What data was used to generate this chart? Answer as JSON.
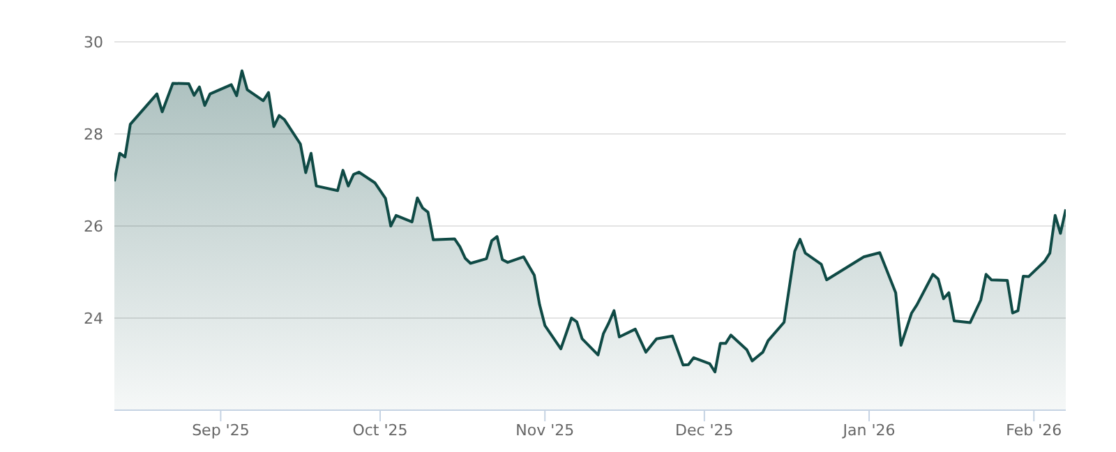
{
  "chart_data": {
    "type": "area",
    "x": [
      "2025-08-12",
      "2025-08-13",
      "2025-08-14",
      "2025-08-15",
      "2025-08-20",
      "2025-08-21",
      "2025-08-23",
      "2025-08-26",
      "2025-08-27",
      "2025-08-28",
      "2025-08-29",
      "2025-08-30",
      "2025-09-03",
      "2025-09-04",
      "2025-09-05",
      "2025-09-06",
      "2025-09-09",
      "2025-09-10",
      "2025-09-11",
      "2025-09-12",
      "2025-09-13",
      "2025-09-16",
      "2025-09-17",
      "2025-09-18",
      "2025-09-19",
      "2025-09-23",
      "2025-09-24",
      "2025-09-25",
      "2025-09-26",
      "2025-09-27",
      "2025-09-30",
      "2025-10-02",
      "2025-10-03",
      "2025-10-04",
      "2025-10-07",
      "2025-10-08",
      "2025-10-09",
      "2025-10-10",
      "2025-10-11",
      "2025-10-15",
      "2025-10-16",
      "2025-10-17",
      "2025-10-18",
      "2025-10-21",
      "2025-10-22",
      "2025-10-23",
      "2025-10-24",
      "2025-10-25",
      "2025-10-28",
      "2025-10-30",
      "2025-10-31",
      "2025-11-01",
      "2025-11-04",
      "2025-11-06",
      "2025-11-07",
      "2025-11-08",
      "2025-11-11",
      "2025-11-12",
      "2025-11-13",
      "2025-11-14",
      "2025-11-15",
      "2025-11-18",
      "2025-11-20",
      "2025-11-22",
      "2025-11-25",
      "2025-11-27",
      "2025-11-28",
      "2025-11-29",
      "2025-12-02",
      "2025-12-03",
      "2025-12-04",
      "2025-12-05",
      "2025-12-06",
      "2025-12-09",
      "2025-12-10",
      "2025-12-12",
      "2025-12-13",
      "2025-12-16",
      "2025-12-18",
      "2025-12-19",
      "2025-12-20",
      "2025-12-23",
      "2025-12-24",
      "2025-12-31",
      "2026-01-03",
      "2026-01-06",
      "2026-01-07",
      "2026-01-09",
      "2026-01-10",
      "2026-01-13",
      "2026-01-14",
      "2026-01-15",
      "2026-01-16",
      "2026-01-17",
      "2026-01-20",
      "2026-01-22",
      "2026-01-23",
      "2026-01-24",
      "2026-01-27",
      "2026-01-28",
      "2026-01-29",
      "2026-01-30",
      "2026-01-31",
      "2026-02-03",
      "2026-02-04",
      "2026-02-05",
      "2026-02-06",
      "2026-02-07"
    ],
    "series": [
      {
        "color": "#0f4a45",
        "values": [
          26.97,
          27.58,
          27.5,
          28.21,
          28.87,
          28.48,
          29.1,
          29.09,
          28.84,
          29.02,
          28.62,
          28.87,
          29.07,
          28.83,
          29.37,
          28.96,
          28.72,
          28.9,
          28.16,
          28.4,
          28.31,
          27.78,
          27.16,
          27.58,
          26.87,
          26.77,
          27.21,
          26.87,
          27.12,
          27.17,
          26.94,
          26.6,
          26.0,
          26.23,
          26.09,
          26.61,
          26.39,
          26.3,
          25.7,
          25.72,
          25.55,
          25.3,
          25.19,
          25.29,
          25.68,
          25.77,
          25.27,
          25.21,
          25.33,
          24.93,
          24.29,
          23.84,
          23.33,
          24.0,
          23.92,
          23.55,
          23.2,
          23.66,
          23.89,
          24.16,
          23.59,
          23.76,
          23.26,
          23.55,
          23.61,
          22.98,
          22.99,
          23.14,
          23.01,
          22.83,
          23.45,
          23.45,
          23.63,
          23.31,
          23.07,
          23.26,
          23.51,
          23.91,
          25.45,
          25.71,
          25.41,
          25.17,
          24.83,
          25.33,
          25.42,
          24.55,
          23.41,
          24.11,
          24.29,
          24.95,
          24.85,
          24.42,
          24.55,
          23.94,
          23.9,
          24.39,
          24.95,
          24.83,
          24.82,
          24.11,
          24.16,
          24.91,
          24.9,
          25.23,
          25.41,
          26.23,
          25.84,
          26.36
        ]
      }
    ],
    "xlim": [
      "2025-08-12",
      "2026-02-07"
    ],
    "xticks": [
      {
        "value": "2025-09-01",
        "label": "Sep '25"
      },
      {
        "value": "2025-10-01",
        "label": "Oct '25"
      },
      {
        "value": "2025-11-01",
        "label": "Nov '25"
      },
      {
        "value": "2025-12-01",
        "label": "Dec '25"
      },
      {
        "value": "2026-01-01",
        "label": "Jan '26"
      },
      {
        "value": "2026-02-01",
        "label": "Feb '26"
      }
    ],
    "ylim": [
      22,
      30
    ],
    "yticks": [
      24,
      26,
      28,
      30
    ],
    "grid": "y"
  }
}
